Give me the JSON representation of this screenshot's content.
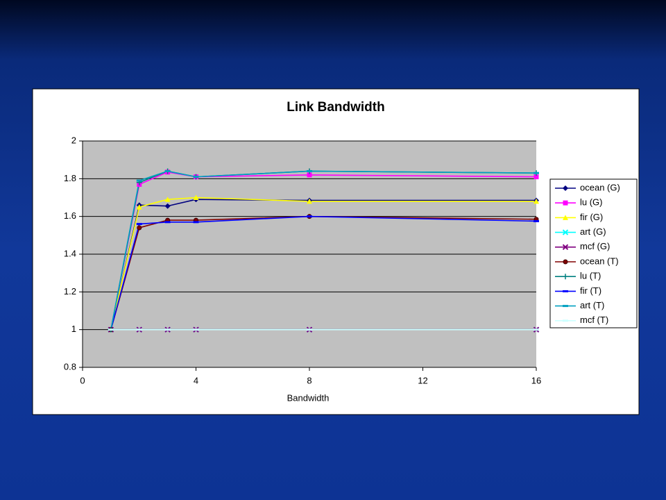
{
  "chart_data": {
    "type": "line",
    "title": "Link Bandwidth",
    "x_label": "Bandwidth",
    "x": [
      1,
      2,
      3,
      4,
      8,
      16
    ],
    "xlim": [
      0,
      16
    ],
    "xticks": [
      0,
      4,
      8,
      12,
      16
    ],
    "ylim": [
      0.8,
      2
    ],
    "yticks": [
      0.8,
      1,
      1.2,
      1.4,
      1.6,
      1.8,
      2
    ],
    "grid": true,
    "legend": "right",
    "series": [
      {
        "name": "ocean (G)",
        "color": "#000080",
        "marker": "diamond",
        "values": [
          1,
          1.66,
          1.655,
          1.69,
          1.685,
          1.685
        ]
      },
      {
        "name": "lu (G)",
        "color": "#ff00ff",
        "marker": "square",
        "values": [
          1,
          1.77,
          1.835,
          1.81,
          1.82,
          1.81
        ]
      },
      {
        "name": "fir (G)",
        "color": "#ffff00",
        "marker": "triangle",
        "values": [
          1,
          1.65,
          1.69,
          1.7,
          1.68,
          1.68
        ]
      },
      {
        "name": "art (G)",
        "color": "#00ffff",
        "marker": "x",
        "values": [
          1,
          1,
          1,
          1,
          1,
          1
        ]
      },
      {
        "name": "mcf (G)",
        "color": "#800080",
        "marker": "x",
        "values": [
          1,
          1,
          1,
          1,
          1,
          1
        ]
      },
      {
        "name": "ocean (T)",
        "color": "#800000",
        "marker": "circle",
        "values": [
          1,
          1.54,
          1.58,
          1.58,
          1.6,
          1.585
        ]
      },
      {
        "name": "lu (T)",
        "color": "#008080",
        "marker": "plus",
        "values": [
          1,
          1.78,
          1.84,
          1.81,
          1.84,
          1.83
        ]
      },
      {
        "name": "fir (T)",
        "color": "#0000ff",
        "marker": "dash",
        "values": [
          1,
          1.56,
          1.57,
          1.57,
          1.6,
          1.575
        ]
      },
      {
        "name": "art (T)",
        "color": "#00a0c0",
        "marker": "dash",
        "values": [
          1,
          1.79,
          1.84,
          1.81,
          1.84,
          1.83
        ]
      },
      {
        "name": "mcf (T)",
        "color": "#ccffff",
        "marker": "dash",
        "values": [
          1,
          1,
          1,
          1,
          1,
          1
        ]
      }
    ]
  }
}
